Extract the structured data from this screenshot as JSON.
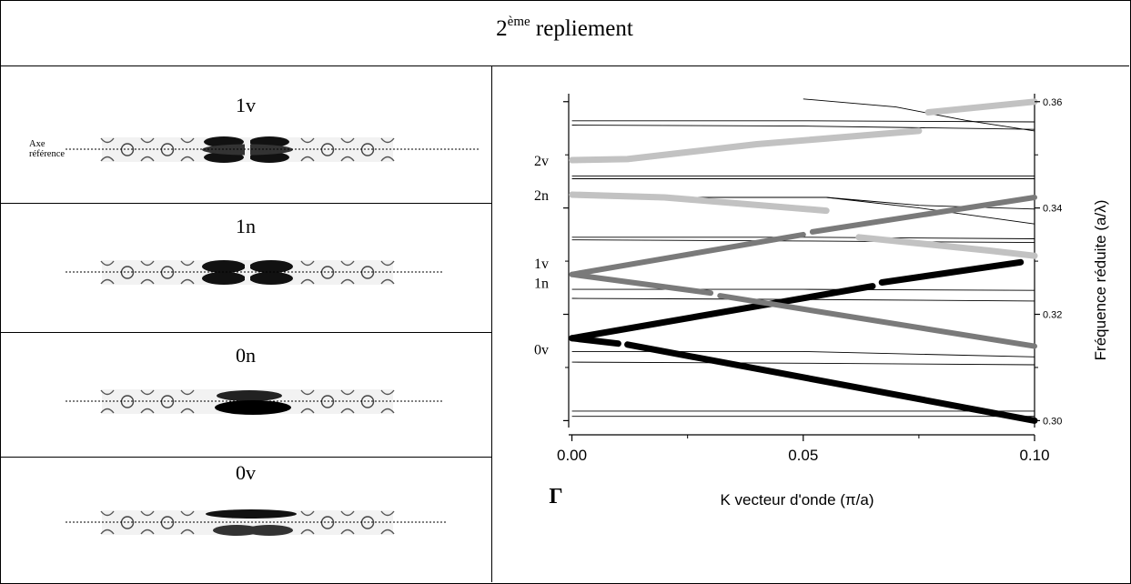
{
  "title": {
    "prefix": "2",
    "sup": "ème",
    "rest": " repliement"
  },
  "left_panels": [
    {
      "label": "1v",
      "axis_label": [
        "Axe",
        "référence"
      ]
    },
    {
      "label": "1n"
    },
    {
      "label": "0n"
    },
    {
      "label": "0v"
    }
  ],
  "chart_data": {
    "type": "line",
    "xlabel": "K vecteur d'onde (π/a)",
    "ylabel": "Fréquence réduite (a/λ)",
    "x_ticks": [
      {
        "value": 0.0,
        "label": "0.00"
      },
      {
        "value": 0.05,
        "label": "0.05"
      },
      {
        "value": 0.1,
        "label": "0.10"
      }
    ],
    "y_ticks": [
      {
        "value": 0.3,
        "label": "0.30"
      },
      {
        "value": 0.32,
        "label": "0.32"
      },
      {
        "value": 0.34,
        "label": "0.34"
      },
      {
        "value": 0.36,
        "label": "0.36"
      }
    ],
    "xlim": [
      -0.0007,
      0.1
    ],
    "ylim": [
      0.2987,
      0.3615
    ],
    "gamma_label": "Γ",
    "mode_labels": [
      {
        "label": "2v",
        "y": 0.349
      },
      {
        "label": "2n",
        "y": 0.3425
      },
      {
        "label": "1v",
        "y": 0.3297
      },
      {
        "label": "1n",
        "y": 0.326
      },
      {
        "label": "0v",
        "y": 0.3135
      }
    ],
    "thin_bands": [
      {
        "x": [
          0,
          0.05,
          0.1
        ],
        "y": [
          0.3564,
          0.3564,
          0.3562
        ]
      },
      {
        "x": [
          0,
          0.05,
          0.1
        ],
        "y": [
          0.3556,
          0.3554,
          0.3548
        ]
      },
      {
        "x": [
          0.05,
          0.07,
          0.085,
          0.1
        ],
        "y": [
          0.3605,
          0.359,
          0.3565,
          0.3545
        ]
      },
      {
        "x": [
          0,
          0.1
        ],
        "y": [
          0.346,
          0.346
        ]
      },
      {
        "x": [
          0,
          0.1
        ],
        "y": [
          0.3455,
          0.3455
        ]
      },
      {
        "x": [
          0,
          0.03,
          0.055,
          0.075,
          0.1
        ],
        "y": [
          0.342,
          0.342,
          0.342,
          0.34,
          0.337
        ]
      },
      {
        "x": [
          0.055,
          0.075,
          0.1
        ],
        "y": [
          0.342,
          0.3405,
          0.3398
        ]
      },
      {
        "x": [
          0,
          0.05,
          0.1
        ],
        "y": [
          0.3345,
          0.3345,
          0.3342
        ]
      },
      {
        "x": [
          0,
          0.05,
          0.1
        ],
        "y": [
          0.334,
          0.3338,
          0.3335
        ]
      },
      {
        "x": [
          0,
          0.05,
          0.1
        ],
        "y": [
          0.3247,
          0.3247,
          0.3245
        ]
      },
      {
        "x": [
          0,
          0.05,
          0.1
        ],
        "y": [
          0.323,
          0.3228,
          0.3225
        ]
      },
      {
        "x": [
          0,
          0.05,
          0.1
        ],
        "y": [
          0.313,
          0.313,
          0.312
        ]
      },
      {
        "x": [
          0,
          0.05,
          0.1
        ],
        "y": [
          0.311,
          0.3108,
          0.3105
        ]
      },
      {
        "x": [
          0,
          0.05,
          0.1
        ],
        "y": [
          0.3018,
          0.3018,
          0.3018
        ]
      },
      {
        "x": [
          0,
          0.05,
          0.1
        ],
        "y": [
          0.3008,
          0.3008,
          0.3008
        ]
      }
    ],
    "series": [
      {
        "color": "#000000",
        "width": 7,
        "x": [
          0,
          0.01
        ],
        "y": [
          0.3155,
          0.3145
        ]
      },
      {
        "color": "#000000",
        "width": 7,
        "x": [
          0.012,
          0.1
        ],
        "y": [
          0.3143,
          0.3
        ]
      },
      {
        "color": "#000000",
        "width": 7,
        "x": [
          0,
          0.065
        ],
        "y": [
          0.3155,
          0.3253
        ]
      },
      {
        "color": "#000000",
        "width": 7,
        "x": [
          0.067,
          0.097
        ],
        "y": [
          0.326,
          0.3298
        ]
      },
      {
        "color": "#7a7a7a",
        "width": 6,
        "x": [
          0,
          0.03
        ],
        "y": [
          0.3275,
          0.324
        ]
      },
      {
        "color": "#7a7a7a",
        "width": 6,
        "x": [
          0.032,
          0.1
        ],
        "y": [
          0.3235,
          0.314
        ]
      },
      {
        "color": "#7a7a7a",
        "width": 6,
        "x": [
          0,
          0.05
        ],
        "y": [
          0.3275,
          0.335
        ]
      },
      {
        "color": "#7a7a7a",
        "width": 6,
        "x": [
          0.052,
          0.1
        ],
        "y": [
          0.3355,
          0.342
        ]
      },
      {
        "color": "#c2c2c2",
        "width": 7,
        "x": [
          0,
          0.012,
          0.04,
          0.075
        ],
        "y": [
          0.349,
          0.3492,
          0.352,
          0.3545
        ]
      },
      {
        "color": "#c2c2c2",
        "width": 7,
        "x": [
          0.077,
          0.1
        ],
        "y": [
          0.358,
          0.36
        ]
      },
      {
        "color": "#c2c2c2",
        "width": 7,
        "x": [
          0,
          0.02,
          0.055
        ],
        "y": [
          0.3425,
          0.342,
          0.3395
        ]
      },
      {
        "color": "#c2c2c2",
        "width": 7,
        "x": [
          0.062,
          0.09,
          0.1
        ],
        "y": [
          0.3345,
          0.332,
          0.331
        ]
      }
    ]
  }
}
